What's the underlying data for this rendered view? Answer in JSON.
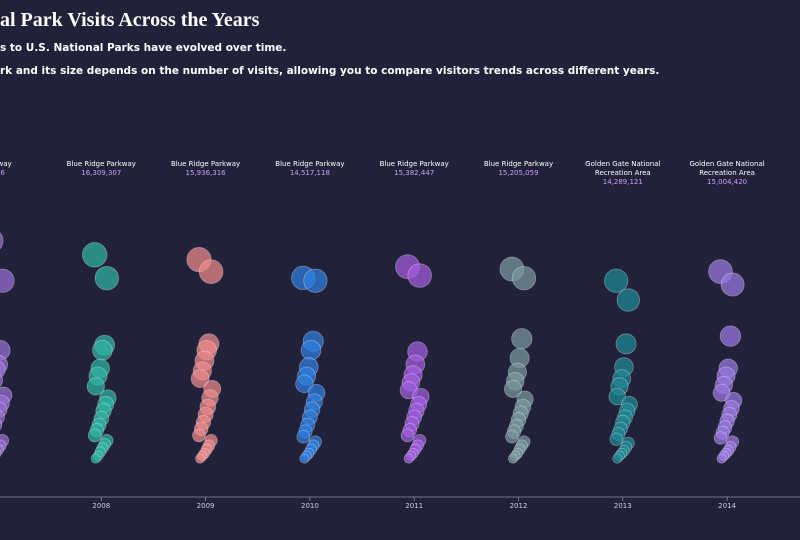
{
  "chart_data": {
    "type": "strip",
    "title": "al Park Visits Across the Years",
    "subtitle_lines": [
      "s to U.S. National Parks have evolved over time.",
      "rk and its size depends on the number of visits, allowing you to compare visitors trends across different years."
    ],
    "categories": [
      "7",
      "2008",
      "2009",
      "2010",
      "2011",
      "2012",
      "2013",
      "2014"
    ],
    "annotations": [
      {
        "park": [
          "Parkway"
        ],
        "visits": ",286"
      },
      {
        "park": [
          "Blue Ridge Parkway"
        ],
        "visits": "16,309,307"
      },
      {
        "park": [
          "Blue Ridge Parkway"
        ],
        "visits": "15,936,316"
      },
      {
        "park": [
          "Blue Ridge Parkway"
        ],
        "visits": "14,517,118"
      },
      {
        "park": [
          "Blue Ridge Parkway"
        ],
        "visits": "15,382,447"
      },
      {
        "park": [
          "Blue Ridge Parkway"
        ],
        "visits": "15,205,059"
      },
      {
        "park": [
          "Golden Gate National",
          "Recreation Area"
        ],
        "visits": "14,289,121"
      },
      {
        "park": [
          "Golden Gate National",
          "Recreation Area"
        ],
        "visits": "15,004,420"
      }
    ],
    "ylim": [
      0,
      18000000
    ],
    "series": [
      {
        "color": "#9b6fd6",
        "values": [
          17400000,
          14300000,
          8900000,
          7800000,
          7400000,
          6600000,
          5900000,
          5400000,
          4800000,
          4300000,
          3700000,
          3100000,
          2600000,
          2200000,
          1900000,
          1500000,
          1200000,
          900000,
          700000,
          500000
        ]
      },
      {
        "color": "#2fb5a5",
        "values": [
          16309307,
          14500000,
          9300000,
          8900000,
          7500000,
          6900000,
          6100000,
          5200000,
          4700000,
          4200000,
          3600000,
          3100000,
          2700000,
          2300000,
          1900000,
          1600000,
          1300000,
          1000000,
          700000,
          500000
        ]
      },
      {
        "color": "#f08a8a",
        "values": [
          15936316,
          15000000,
          9400000,
          8900000,
          8100000,
          7300000,
          6700000,
          5900000,
          5200000,
          4500000,
          3900000,
          3300000,
          2800000,
          2300000,
          1900000,
          1500000,
          1200000,
          900000,
          700000,
          500000
        ]
      },
      {
        "color": "#2f7fe0",
        "values": [
          14517118,
          14300000,
          9600000,
          8900000,
          7600000,
          6900000,
          6300000,
          5600000,
          4900000,
          4300000,
          3700000,
          3100000,
          2600000,
          2200000,
          1800000,
          1500000,
          1200000,
          900000,
          700000,
          500000
        ]
      },
      {
        "color": "#a45ee0",
        "values": [
          15382447,
          14700000,
          8800000,
          7800000,
          7000000,
          6400000,
          5800000,
          5300000,
          4700000,
          4200000,
          3700000,
          3200000,
          2700000,
          2300000,
          1900000,
          1500000,
          1200000,
          900000,
          700000,
          500000
        ]
      },
      {
        "color": "#7a9aa0",
        "values": [
          15205059,
          14500000,
          9800000,
          8300000,
          7200000,
          6500000,
          5900000,
          5100000,
          4500000,
          4000000,
          3500000,
          3000000,
          2600000,
          2200000,
          1800000,
          1500000,
          1200000,
          900000,
          700000,
          500000
        ]
      },
      {
        "color": "#1e8a95",
        "values": [
          14289121,
          12800000,
          9400000,
          7600000,
          6700000,
          6100000,
          5300000,
          4700000,
          4200000,
          3700000,
          3300000,
          2800000,
          2400000,
          2000000,
          1700000,
          1400000,
          1100000,
          900000,
          700000,
          500000
        ]
      },
      {
        "color": "#9a78e0",
        "values": [
          15004420,
          14000000,
          10000000,
          7500000,
          6900000,
          6200000,
          5600000,
          5000000,
          4400000,
          3900000,
          3400000,
          2900000,
          2500000,
          2100000,
          1800000,
          1400000,
          1100000,
          900000,
          700000,
          500000
        ]
      }
    ]
  }
}
